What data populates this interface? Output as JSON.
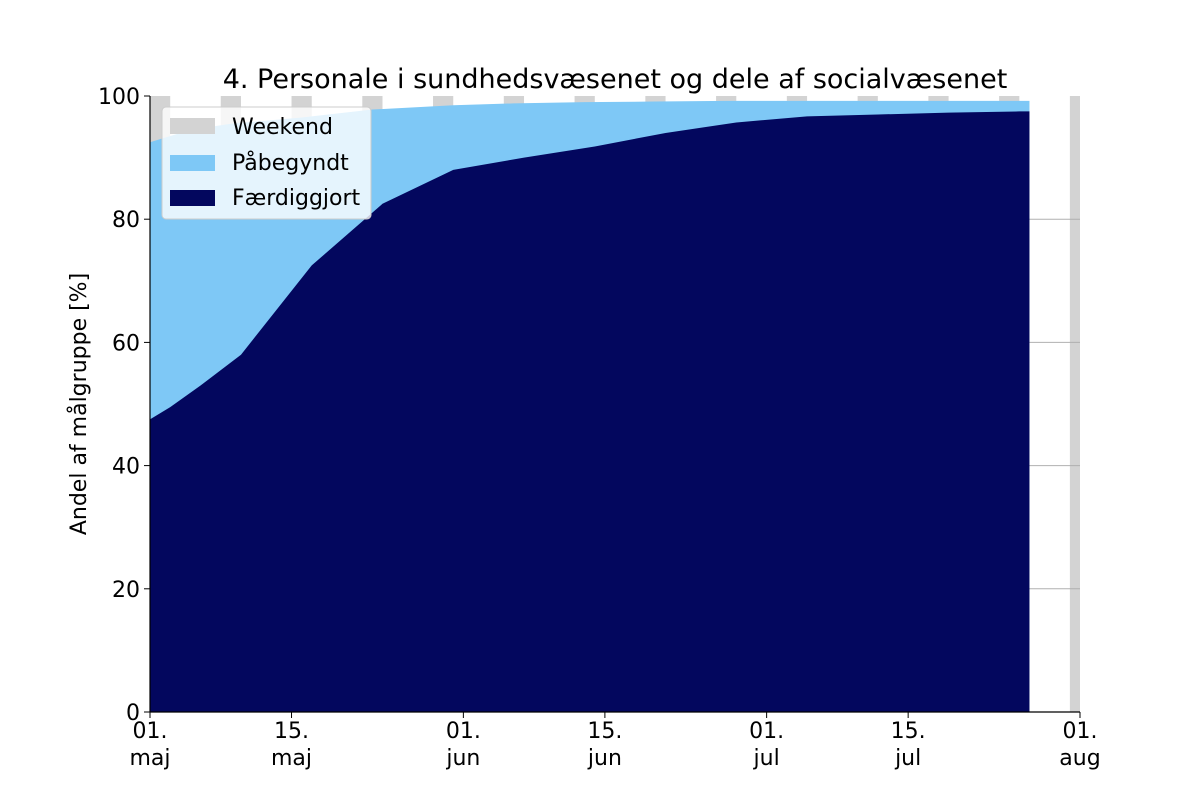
{
  "chart_data": {
    "type": "area",
    "title": "4. Personale i sundhedsvæsenet og dele af socialvæsenet",
    "xlabel": "",
    "ylabel": "Andel af målgruppe [%]",
    "xlim": [
      "2021-05-01",
      "2021-08-01"
    ],
    "ylim": [
      0,
      100
    ],
    "yticks": [
      0,
      20,
      40,
      60,
      80,
      100
    ],
    "xticks": [
      {
        "date": "2021-05-01",
        "line1": "01.",
        "line2": "maj"
      },
      {
        "date": "2021-05-15",
        "line1": "15.",
        "line2": "maj"
      },
      {
        "date": "2021-06-01",
        "line1": "01.",
        "line2": "jun"
      },
      {
        "date": "2021-06-15",
        "line1": "15.",
        "line2": "jun"
      },
      {
        "date": "2021-07-01",
        "line1": "01.",
        "line2": "jul"
      },
      {
        "date": "2021-07-15",
        "line1": "15.",
        "line2": "jul"
      },
      {
        "date": "2021-08-01",
        "line1": "01.",
        "line2": "aug"
      }
    ],
    "grid": {
      "y": true,
      "x": false
    },
    "legend": {
      "position": "top-left",
      "entries": [
        "Weekend",
        "Påbegyndt",
        "Færdiggjort"
      ]
    },
    "colors": {
      "weekend": "#d3d3d3",
      "started": "#7ec8f6",
      "completed": "#03075e",
      "grid": "#b0b0b0"
    },
    "weekends": [
      "2021-05-01",
      "2021-05-08",
      "2021-05-15",
      "2021-05-22",
      "2021-05-29",
      "2021-06-05",
      "2021-06-12",
      "2021-06-19",
      "2021-06-26",
      "2021-07-03",
      "2021-07-10",
      "2021-07-17",
      "2021-07-24",
      "2021-07-31"
    ],
    "series": [
      {
        "name": "Påbegyndt",
        "x": [
          "2021-05-01",
          "2021-05-02",
          "2021-05-05",
          "2021-05-09",
          "2021-05-16",
          "2021-05-23",
          "2021-05-31",
          "2021-06-06",
          "2021-06-13",
          "2021-06-20",
          "2021-06-27",
          "2021-07-04",
          "2021-07-11",
          "2021-07-18",
          "2021-07-25",
          "2021-07-27"
        ],
        "values": [
          92.5,
          93,
          94.5,
          95.5,
          96.5,
          97.8,
          98.5,
          98.8,
          99,
          99.1,
          99.2,
          99.2,
          99.2,
          99.2,
          99.2,
          99.2
        ]
      },
      {
        "name": "Færdiggjort",
        "x": [
          "2021-05-01",
          "2021-05-03",
          "2021-05-06",
          "2021-05-10",
          "2021-05-17",
          "2021-05-24",
          "2021-05-31",
          "2021-06-07",
          "2021-06-14",
          "2021-06-21",
          "2021-06-28",
          "2021-07-05",
          "2021-07-12",
          "2021-07-19",
          "2021-07-26",
          "2021-07-27"
        ],
        "values": [
          47.5,
          49.5,
          53,
          58,
          72.5,
          82.5,
          88,
          90,
          91.8,
          94,
          95.7,
          96.7,
          97,
          97.3,
          97.5,
          97.5
        ]
      }
    ]
  }
}
